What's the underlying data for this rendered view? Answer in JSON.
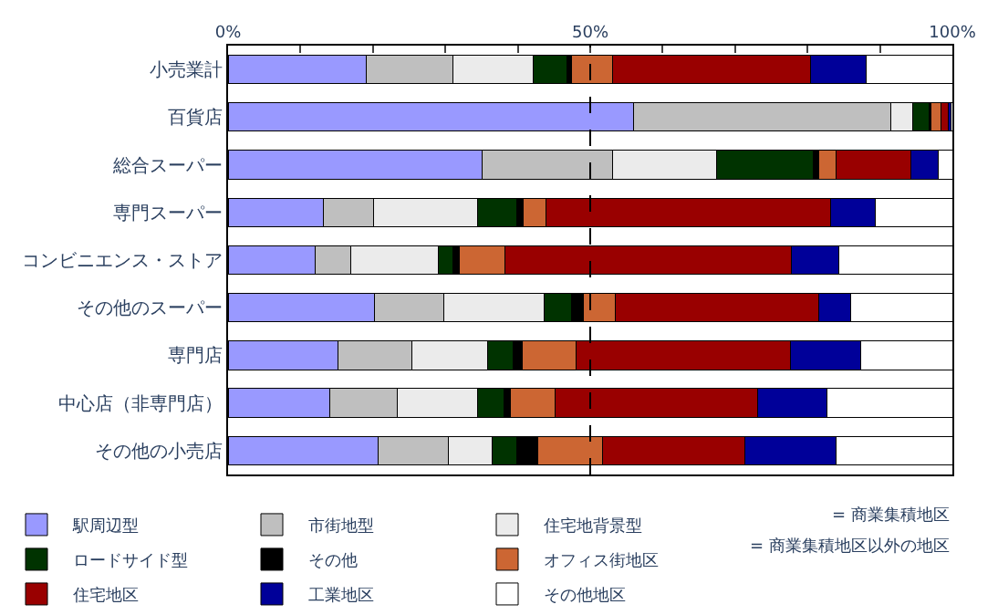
{
  "chart_data": {
    "type": "bar",
    "orientation": "horizontal",
    "stacked": true,
    "categories": [
      "小売業計",
      "百貨店",
      "総合スーパー",
      "専門スーパー",
      "コンビニエンス・ストア",
      "その他のスーパー",
      "専門店",
      "中心店（非専門店）",
      "その他の小売店"
    ],
    "series": [
      {
        "name": "駅周辺型",
        "color": "#9999ff",
        "values": [
          19.1,
          56.0,
          35.1,
          13.1,
          12.0,
          20.2,
          15.2,
          14.0,
          20.7
        ]
      },
      {
        "name": "市街地型",
        "color": "#bfbfbf",
        "values": [
          11.9,
          35.5,
          18.0,
          7.0,
          4.9,
          9.6,
          10.2,
          9.3,
          9.7
        ]
      },
      {
        "name": "住宅地背景型",
        "color": "#ebebeb",
        "values": [
          11.1,
          3.0,
          14.4,
          14.3,
          12.1,
          13.9,
          10.4,
          11.1,
          6.1
        ]
      },
      {
        "name": "ロードサイド型",
        "color": "#003300",
        "values": [
          4.7,
          2.3,
          13.3,
          5.4,
          2.0,
          3.7,
          3.6,
          3.7,
          3.4
        ]
      },
      {
        "name": "その他",
        "color": "#000000",
        "values": [
          0.6,
          0.2,
          0.7,
          1.0,
          0.9,
          1.6,
          1.2,
          0.9,
          2.8
        ]
      },
      {
        "name": "オフィス街地区",
        "color": "#cc6633",
        "values": [
          5.7,
          1.4,
          2.5,
          3.1,
          6.3,
          4.4,
          7.5,
          6.2,
          9.0
        ]
      },
      {
        "name": "住宅地区",
        "color": "#990000",
        "values": [
          27.3,
          1.0,
          10.3,
          39.3,
          39.6,
          28.1,
          29.6,
          27.9,
          19.7
        ]
      },
      {
        "name": "工業地区",
        "color": "#000099",
        "values": [
          7.7,
          0.4,
          3.7,
          6.2,
          6.5,
          4.5,
          9.6,
          9.6,
          12.6
        ]
      },
      {
        "name": "その他地区",
        "color": "#ffffff",
        "values": [
          11.9,
          0.2,
          2.0,
          10.6,
          15.7,
          14.0,
          12.7,
          17.3,
          16.0
        ]
      }
    ],
    "xlim": [
      0,
      100
    ],
    "xticks": [
      {
        "value": 0,
        "label": "0%"
      },
      {
        "value": 10,
        "label": null
      },
      {
        "value": 20,
        "label": null
      },
      {
        "value": 30,
        "label": null
      },
      {
        "value": 40,
        "label": null
      },
      {
        "value": 50,
        "label": "50%"
      },
      {
        "value": 60,
        "label": null
      },
      {
        "value": 70,
        "label": null
      },
      {
        "value": 80,
        "label": null
      },
      {
        "value": 90,
        "label": null
      },
      {
        "value": 100,
        "label": "100%"
      }
    ],
    "ref_lines": [
      {
        "axis": "x",
        "value": 50,
        "line_style": "dashed",
        "color": "#000000"
      }
    ],
    "annotations": [
      "= 商業集積地区",
      "= 商業集積地区以外の地区"
    ],
    "legend": "bottom"
  }
}
